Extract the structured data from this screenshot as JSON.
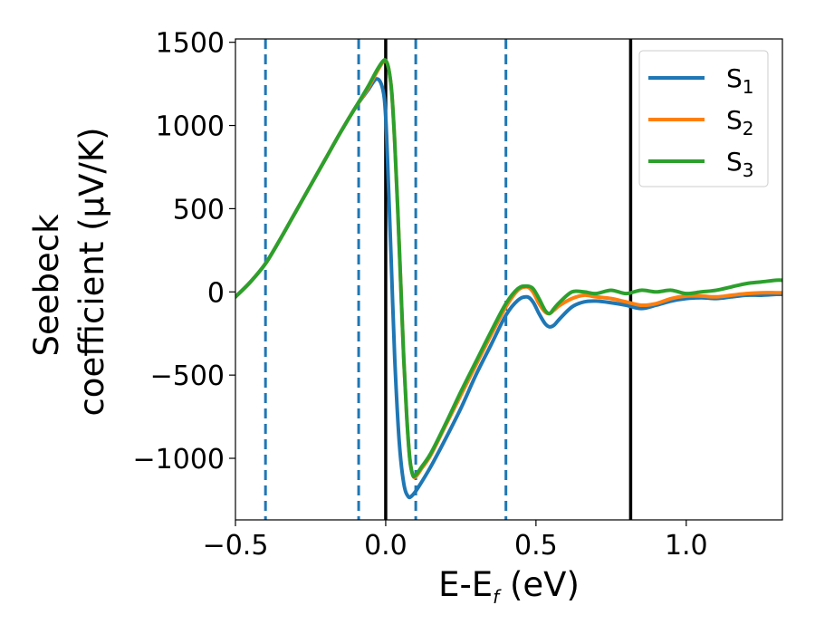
{
  "chart_data": {
    "type": "line",
    "xlabel": {
      "main": "E-E",
      "sub": "f",
      "tail": " (eV)"
    },
    "ylabel": {
      "line1": "Seebeck",
      "line2": "coefficient  (μV/K)"
    },
    "xlim": [
      -0.5,
      1.32
    ],
    "ylim": [
      -1370,
      1520
    ],
    "xticks": [
      {
        "value": -0.5,
        "label": "−0.5"
      },
      {
        "value": 0.0,
        "label": "0.0"
      },
      {
        "value": 0.5,
        "label": "0.5"
      },
      {
        "value": 1.0,
        "label": "1.0"
      }
    ],
    "yticks": [
      {
        "value": 1500,
        "label": "1500"
      },
      {
        "value": 1000,
        "label": "1000"
      },
      {
        "value": 500,
        "label": "500"
      },
      {
        "value": 0,
        "label": "0"
      },
      {
        "value": -500,
        "label": "−500"
      },
      {
        "value": -1000,
        "label": "−1000"
      }
    ],
    "grid": false,
    "legend_position": "top-right",
    "vlines_dashed": {
      "color": "#1f77b4",
      "x": [
        -0.4,
        -0.09,
        0.1,
        0.4
      ]
    },
    "vlines_solid": {
      "color": "#000000",
      "x": [
        0.0,
        0.815
      ]
    },
    "series": [
      {
        "name": "S",
        "sub": "1",
        "color": "#1f77b4",
        "x": [
          -0.5,
          -0.45,
          -0.4,
          -0.35,
          -0.3,
          -0.25,
          -0.2,
          -0.15,
          -0.1,
          -0.06,
          -0.03,
          -0.01,
          0.0,
          0.01,
          0.02,
          0.03,
          0.045,
          0.06,
          0.075,
          0.09,
          0.11,
          0.15,
          0.2,
          0.25,
          0.3,
          0.35,
          0.4,
          0.44,
          0.47,
          0.49,
          0.51,
          0.53,
          0.545,
          0.56,
          0.58,
          0.62,
          0.66,
          0.7,
          0.75,
          0.8,
          0.85,
          0.9,
          0.95,
          1.0,
          1.05,
          1.1,
          1.15,
          1.2,
          1.25,
          1.3,
          1.32
        ],
        "y": [
          -30,
          60,
          170,
          320,
          480,
          640,
          800,
          960,
          1110,
          1210,
          1280,
          1220,
          1050,
          600,
          100,
          -400,
          -900,
          -1150,
          -1230,
          -1220,
          -1170,
          -1050,
          -880,
          -700,
          -500,
          -320,
          -140,
          -50,
          -30,
          -60,
          -130,
          -190,
          -210,
          -200,
          -160,
          -90,
          -60,
          -55,
          -65,
          -80,
          -100,
          -80,
          -55,
          -40,
          -35,
          -40,
          -30,
          -20,
          -20,
          -15,
          -15
        ]
      },
      {
        "name": "S",
        "sub": "2",
        "color": "#ff7f0e",
        "x": [
          -0.5,
          -0.45,
          -0.4,
          -0.35,
          -0.3,
          -0.25,
          -0.2,
          -0.15,
          -0.1,
          -0.06,
          -0.03,
          -0.01,
          0.0,
          0.01,
          0.02,
          0.03,
          0.04,
          0.05,
          0.06,
          0.07,
          0.08,
          0.09,
          0.1,
          0.12,
          0.15,
          0.2,
          0.25,
          0.3,
          0.35,
          0.4,
          0.44,
          0.47,
          0.49,
          0.51,
          0.53,
          0.545,
          0.56,
          0.58,
          0.62,
          0.66,
          0.7,
          0.75,
          0.8,
          0.85,
          0.9,
          0.95,
          1.0,
          1.05,
          1.1,
          1.15,
          1.2,
          1.25,
          1.3,
          1.32
        ],
        "y": [
          -30,
          60,
          170,
          320,
          480,
          640,
          800,
          960,
          1110,
          1220,
          1320,
          1380,
          1390,
          1340,
          1200,
          900,
          500,
          50,
          -400,
          -750,
          -1000,
          -1100,
          -1110,
          -1060,
          -980,
          -800,
          -620,
          -440,
          -260,
          -90,
          10,
          30,
          0,
          -70,
          -120,
          -130,
          -110,
          -80,
          -40,
          -20,
          -30,
          -40,
          -60,
          -80,
          -70,
          -40,
          -25,
          -25,
          -30,
          -20,
          -10,
          -5,
          -5,
          -5
        ]
      },
      {
        "name": "S",
        "sub": "3",
        "color": "#2ca02c",
        "x": [
          -0.5,
          -0.45,
          -0.4,
          -0.35,
          -0.3,
          -0.25,
          -0.2,
          -0.15,
          -0.1,
          -0.06,
          -0.03,
          -0.01,
          0.0,
          0.01,
          0.02,
          0.03,
          0.04,
          0.05,
          0.06,
          0.07,
          0.08,
          0.09,
          0.1,
          0.12,
          0.15,
          0.2,
          0.25,
          0.3,
          0.35,
          0.4,
          0.44,
          0.47,
          0.49,
          0.51,
          0.53,
          0.545,
          0.56,
          0.58,
          0.62,
          0.66,
          0.7,
          0.75,
          0.8,
          0.85,
          0.9,
          0.95,
          1.0,
          1.05,
          1.1,
          1.15,
          1.2,
          1.25,
          1.3,
          1.32
        ],
        "y": [
          -30,
          60,
          170,
          320,
          480,
          640,
          800,
          960,
          1110,
          1230,
          1330,
          1385,
          1390,
          1340,
          1200,
          900,
          500,
          50,
          -400,
          -750,
          -1000,
          -1100,
          -1100,
          -1050,
          -970,
          -790,
          -600,
          -420,
          -240,
          -70,
          20,
          35,
          20,
          -40,
          -110,
          -130,
          -100,
          -60,
          0,
          0,
          -10,
          10,
          -10,
          10,
          0,
          10,
          -10,
          0,
          10,
          30,
          50,
          60,
          70,
          70
        ]
      }
    ]
  }
}
